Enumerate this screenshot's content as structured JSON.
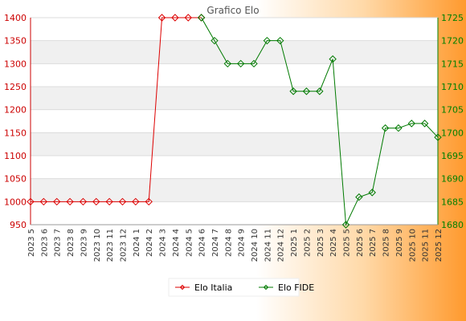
{
  "chart_data": {
    "type": "line",
    "title": "Grafico Elo",
    "categories": [
      "2023 5",
      "2023 6",
      "2023 7",
      "2023 8",
      "2023 9",
      "2023 10",
      "2023 11",
      "2023 12",
      "2024 1",
      "2024 2",
      "2024 3",
      "2024 4",
      "2024 5",
      "2024 6",
      "2024 7",
      "2024 8",
      "2024 9",
      "2024 10",
      "2024 11",
      "2024 12",
      "2025 1",
      "2025 2",
      "2025 3",
      "2025 4",
      "2025 5",
      "2025 6",
      "2025 7",
      "2025 8",
      "2025 9",
      "2025 10",
      "2025 11",
      "2025 12"
    ],
    "y_left": {
      "range": [
        950,
        1400
      ],
      "ticks": [
        950,
        1000,
        1050,
        1100,
        1150,
        1200,
        1250,
        1300,
        1350,
        1400
      ]
    },
    "y_right": {
      "range": [
        1680,
        1725
      ],
      "ticks": [
        1680,
        1685,
        1690,
        1695,
        1700,
        1705,
        1710,
        1715,
        1720,
        1725
      ]
    },
    "series": [
      {
        "name": "Elo Italia",
        "axis": "left",
        "color": "#dd0000",
        "values": [
          1000,
          1000,
          1000,
          1000,
          1000,
          1000,
          1000,
          1000,
          1000,
          1000,
          1400,
          1400,
          1400,
          1400,
          null,
          null,
          null,
          null,
          null,
          null,
          null,
          null,
          null,
          null,
          null,
          null,
          null,
          null,
          null,
          null,
          null,
          null
        ]
      },
      {
        "name": "Elo FIDE",
        "axis": "right",
        "color": "#007a00",
        "values": [
          null,
          null,
          null,
          null,
          null,
          null,
          null,
          null,
          null,
          null,
          null,
          null,
          null,
          1725,
          1720,
          1715,
          1715,
          1715,
          1720,
          1720,
          1709,
          1709,
          1709,
          1716,
          1680,
          1686,
          1687,
          1701,
          1701,
          1702,
          1702,
          1699
        ]
      }
    ],
    "grid": true,
    "legend_position": "bottom"
  }
}
